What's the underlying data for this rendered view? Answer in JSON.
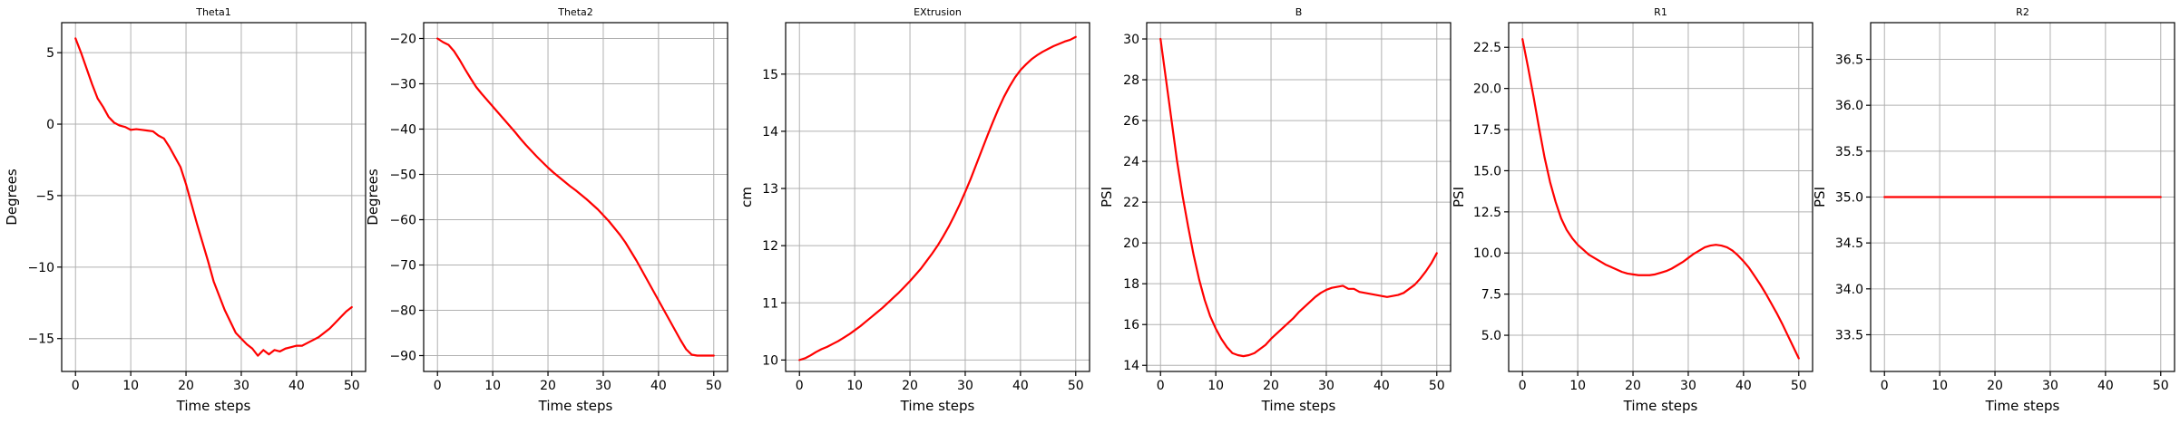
{
  "figure": {
    "line_color": "#ff0000",
    "background": "#ffffff",
    "grid": true
  },
  "chart_data": [
    {
      "type": "line",
      "title": "Theta1",
      "xlabel": "Time steps",
      "ylabel": "Degrees",
      "xlim": [
        -2.5,
        52.5
      ],
      "ylim": [
        -17.3,
        7.1
      ],
      "xticks": [
        0,
        10,
        20,
        30,
        40,
        50
      ],
      "yticks": [
        5,
        0,
        -5,
        -10,
        -15
      ],
      "ytick_labels": [
        "5",
        "0",
        "−5",
        "−10",
        "−15"
      ],
      "series": [
        {
          "x": [
            0,
            1,
            2,
            3,
            4,
            5,
            6,
            7,
            8,
            9,
            10,
            11,
            12,
            13,
            14,
            15,
            16,
            17,
            18,
            19,
            20,
            21,
            22,
            23,
            24,
            25,
            26,
            27,
            28,
            29,
            30,
            31,
            32,
            33,
            34,
            35,
            36,
            37,
            38,
            39,
            40,
            41,
            42,
            43,
            44,
            45,
            46,
            47,
            48,
            49,
            50
          ],
          "y": [
            6.0,
            5.0,
            3.9,
            2.8,
            1.8,
            1.2,
            0.5,
            0.1,
            -0.1,
            -0.2,
            -0.4,
            -0.35,
            -0.4,
            -0.45,
            -0.5,
            -0.8,
            -1.0,
            -1.6,
            -2.3,
            -3.0,
            -4.2,
            -5.6,
            -7.0,
            -8.3,
            -9.6,
            -11.0,
            -12.0,
            -13.0,
            -13.8,
            -14.6,
            -15.0,
            -15.4,
            -15.7,
            -16.2,
            -15.8,
            -16.1,
            -15.8,
            -15.9,
            -15.7,
            -15.6,
            -15.5,
            -15.5,
            -15.3,
            -15.1,
            -14.9,
            -14.6,
            -14.3,
            -13.9,
            -13.5,
            -13.1,
            -12.8
          ]
        }
      ]
    },
    {
      "type": "line",
      "title": "Theta2",
      "xlabel": "Time steps",
      "ylabel": "Degrees",
      "xlim": [
        -2.5,
        52.5
      ],
      "ylim": [
        -93.5,
        -16.5
      ],
      "xticks": [
        0,
        10,
        20,
        30,
        40,
        50
      ],
      "yticks": [
        -20,
        -30,
        -40,
        -50,
        -60,
        -70,
        -80,
        -90
      ],
      "ytick_labels": [
        "−20",
        "−30",
        "−40",
        "−50",
        "−60",
        "−70",
        "−80",
        "−90"
      ],
      "series": [
        {
          "x": [
            0,
            1,
            2,
            3,
            4,
            5,
            6,
            7,
            8,
            9,
            10,
            11,
            12,
            13,
            14,
            15,
            16,
            17,
            18,
            19,
            20,
            21,
            22,
            23,
            24,
            25,
            26,
            27,
            28,
            29,
            30,
            31,
            32,
            33,
            34,
            35,
            36,
            37,
            38,
            39,
            40,
            41,
            42,
            43,
            44,
            45,
            46,
            47,
            48,
            49,
            50
          ],
          "y": [
            -20.0,
            -20.8,
            -21.4,
            -22.8,
            -24.7,
            -26.8,
            -28.8,
            -30.7,
            -32.2,
            -33.6,
            -35.0,
            -36.4,
            -37.8,
            -39.2,
            -40.6,
            -42.1,
            -43.5,
            -44.8,
            -46.1,
            -47.3,
            -48.5,
            -49.6,
            -50.6,
            -51.6,
            -52.6,
            -53.5,
            -54.5,
            -55.5,
            -56.6,
            -57.7,
            -59.0,
            -60.3,
            -61.8,
            -63.3,
            -65.0,
            -67.0,
            -69.0,
            -71.2,
            -73.4,
            -75.6,
            -77.8,
            -80.0,
            -82.2,
            -84.4,
            -86.6,
            -88.6,
            -89.8,
            -90.0,
            -90.0,
            -90.0,
            -90.0
          ]
        }
      ]
    },
    {
      "type": "line",
      "title": "EXtrusion",
      "xlabel": "Time steps",
      "ylabel": "cm",
      "xlim": [
        -2.5,
        52.5
      ],
      "ylim": [
        9.8,
        15.9
      ],
      "xticks": [
        0,
        10,
        20,
        30,
        40,
        50
      ],
      "yticks": [
        10,
        11,
        12,
        13,
        14,
        15
      ],
      "ytick_labels": [
        "10",
        "11",
        "12",
        "13",
        "14",
        "15"
      ],
      "series": [
        {
          "x": [
            0,
            1,
            2,
            3,
            4,
            5,
            6,
            7,
            8,
            9,
            10,
            11,
            12,
            13,
            14,
            15,
            16,
            17,
            18,
            19,
            20,
            21,
            22,
            23,
            24,
            25,
            26,
            27,
            28,
            29,
            30,
            31,
            32,
            33,
            34,
            35,
            36,
            37,
            38,
            39,
            40,
            41,
            42,
            43,
            44,
            45,
            46,
            47,
            48,
            49,
            50
          ],
          "y": [
            10.0,
            10.03,
            10.08,
            10.14,
            10.19,
            10.23,
            10.28,
            10.33,
            10.39,
            10.45,
            10.52,
            10.59,
            10.67,
            10.75,
            10.83,
            10.91,
            11.0,
            11.09,
            11.18,
            11.28,
            11.38,
            11.49,
            11.6,
            11.73,
            11.86,
            12.0,
            12.16,
            12.33,
            12.52,
            12.72,
            12.94,
            13.17,
            13.42,
            13.67,
            13.92,
            14.16,
            14.39,
            14.6,
            14.78,
            14.94,
            15.07,
            15.17,
            15.26,
            15.33,
            15.39,
            15.44,
            15.49,
            15.53,
            15.57,
            15.6,
            15.65
          ]
        }
      ]
    },
    {
      "type": "line",
      "title": "B",
      "xlabel": "Time steps",
      "ylabel": "PSI",
      "xlim": [
        -2.5,
        52.5
      ],
      "ylim": [
        13.7,
        30.8
      ],
      "xticks": [
        0,
        10,
        20,
        30,
        40,
        50
      ],
      "yticks": [
        14,
        16,
        18,
        20,
        22,
        24,
        26,
        28,
        30
      ],
      "ytick_labels": [
        "14",
        "16",
        "18",
        "20",
        "22",
        "24",
        "26",
        "28",
        "30"
      ],
      "series": [
        {
          "x": [
            0,
            1,
            2,
            3,
            4,
            5,
            6,
            7,
            8,
            9,
            10,
            11,
            12,
            13,
            14,
            15,
            16,
            17,
            18,
            19,
            20,
            21,
            22,
            23,
            24,
            25,
            26,
            27,
            28,
            29,
            30,
            31,
            32,
            33,
            34,
            35,
            36,
            37,
            38,
            39,
            40,
            41,
            42,
            43,
            44,
            45,
            46,
            47,
            48,
            49,
            50
          ],
          "y": [
            30.0,
            28.0,
            26.0,
            24.0,
            22.3,
            20.8,
            19.4,
            18.2,
            17.2,
            16.4,
            15.8,
            15.3,
            14.9,
            14.6,
            14.5,
            14.45,
            14.5,
            14.6,
            14.8,
            15.0,
            15.3,
            15.55,
            15.8,
            16.05,
            16.3,
            16.6,
            16.85,
            17.1,
            17.35,
            17.55,
            17.7,
            17.8,
            17.85,
            17.9,
            17.75,
            17.75,
            17.6,
            17.55,
            17.5,
            17.45,
            17.4,
            17.35,
            17.4,
            17.45,
            17.55,
            17.75,
            17.95,
            18.25,
            18.6,
            19.0,
            19.5
          ]
        }
      ]
    },
    {
      "type": "line",
      "title": "R1",
      "xlabel": "Time steps",
      "ylabel": "PSI",
      "xlim": [
        -2.5,
        52.5
      ],
      "ylim": [
        2.8,
        24.0
      ],
      "xticks": [
        0,
        10,
        20,
        30,
        40,
        50
      ],
      "yticks": [
        5.0,
        7.5,
        10.0,
        12.5,
        15.0,
        17.5,
        20.0,
        22.5
      ],
      "ytick_labels": [
        "5.0",
        "7.5",
        "10.0",
        "12.5",
        "15.0",
        "17.5",
        "20.0",
        "22.5"
      ],
      "series": [
        {
          "x": [
            0,
            1,
            2,
            3,
            4,
            5,
            6,
            7,
            8,
            9,
            10,
            11,
            12,
            13,
            14,
            15,
            16,
            17,
            18,
            19,
            20,
            21,
            22,
            23,
            24,
            25,
            26,
            27,
            28,
            29,
            30,
            31,
            32,
            33,
            34,
            35,
            36,
            37,
            38,
            39,
            40,
            41,
            42,
            43,
            44,
            45,
            46,
            47,
            48,
            49,
            50
          ],
          "y": [
            23.0,
            21.3,
            19.5,
            17.6,
            15.8,
            14.3,
            13.1,
            12.1,
            11.4,
            10.9,
            10.5,
            10.2,
            9.9,
            9.7,
            9.5,
            9.3,
            9.15,
            9.0,
            8.85,
            8.75,
            8.7,
            8.65,
            8.65,
            8.65,
            8.7,
            8.8,
            8.9,
            9.05,
            9.25,
            9.45,
            9.7,
            9.95,
            10.15,
            10.35,
            10.45,
            10.5,
            10.45,
            10.35,
            10.15,
            9.85,
            9.5,
            9.1,
            8.6,
            8.1,
            7.55,
            6.95,
            6.35,
            5.7,
            5.0,
            4.3,
            3.6
          ]
        }
      ]
    },
    {
      "type": "line",
      "title": "R2",
      "xlabel": "Time steps",
      "ylabel": "PSI",
      "xlim": [
        -2.5,
        52.5
      ],
      "ylim": [
        33.1,
        36.9
      ],
      "xticks": [
        0,
        10,
        20,
        30,
        40,
        50
      ],
      "yticks": [
        33.5,
        34.0,
        34.5,
        35.0,
        35.5,
        36.0,
        36.5
      ],
      "ytick_labels": [
        "33.5",
        "34.0",
        "34.5",
        "35.0",
        "35.5",
        "36.0",
        "36.5"
      ],
      "series": [
        {
          "x": [
            0,
            50
          ],
          "y": [
            35.0,
            35.0
          ]
        }
      ]
    }
  ]
}
